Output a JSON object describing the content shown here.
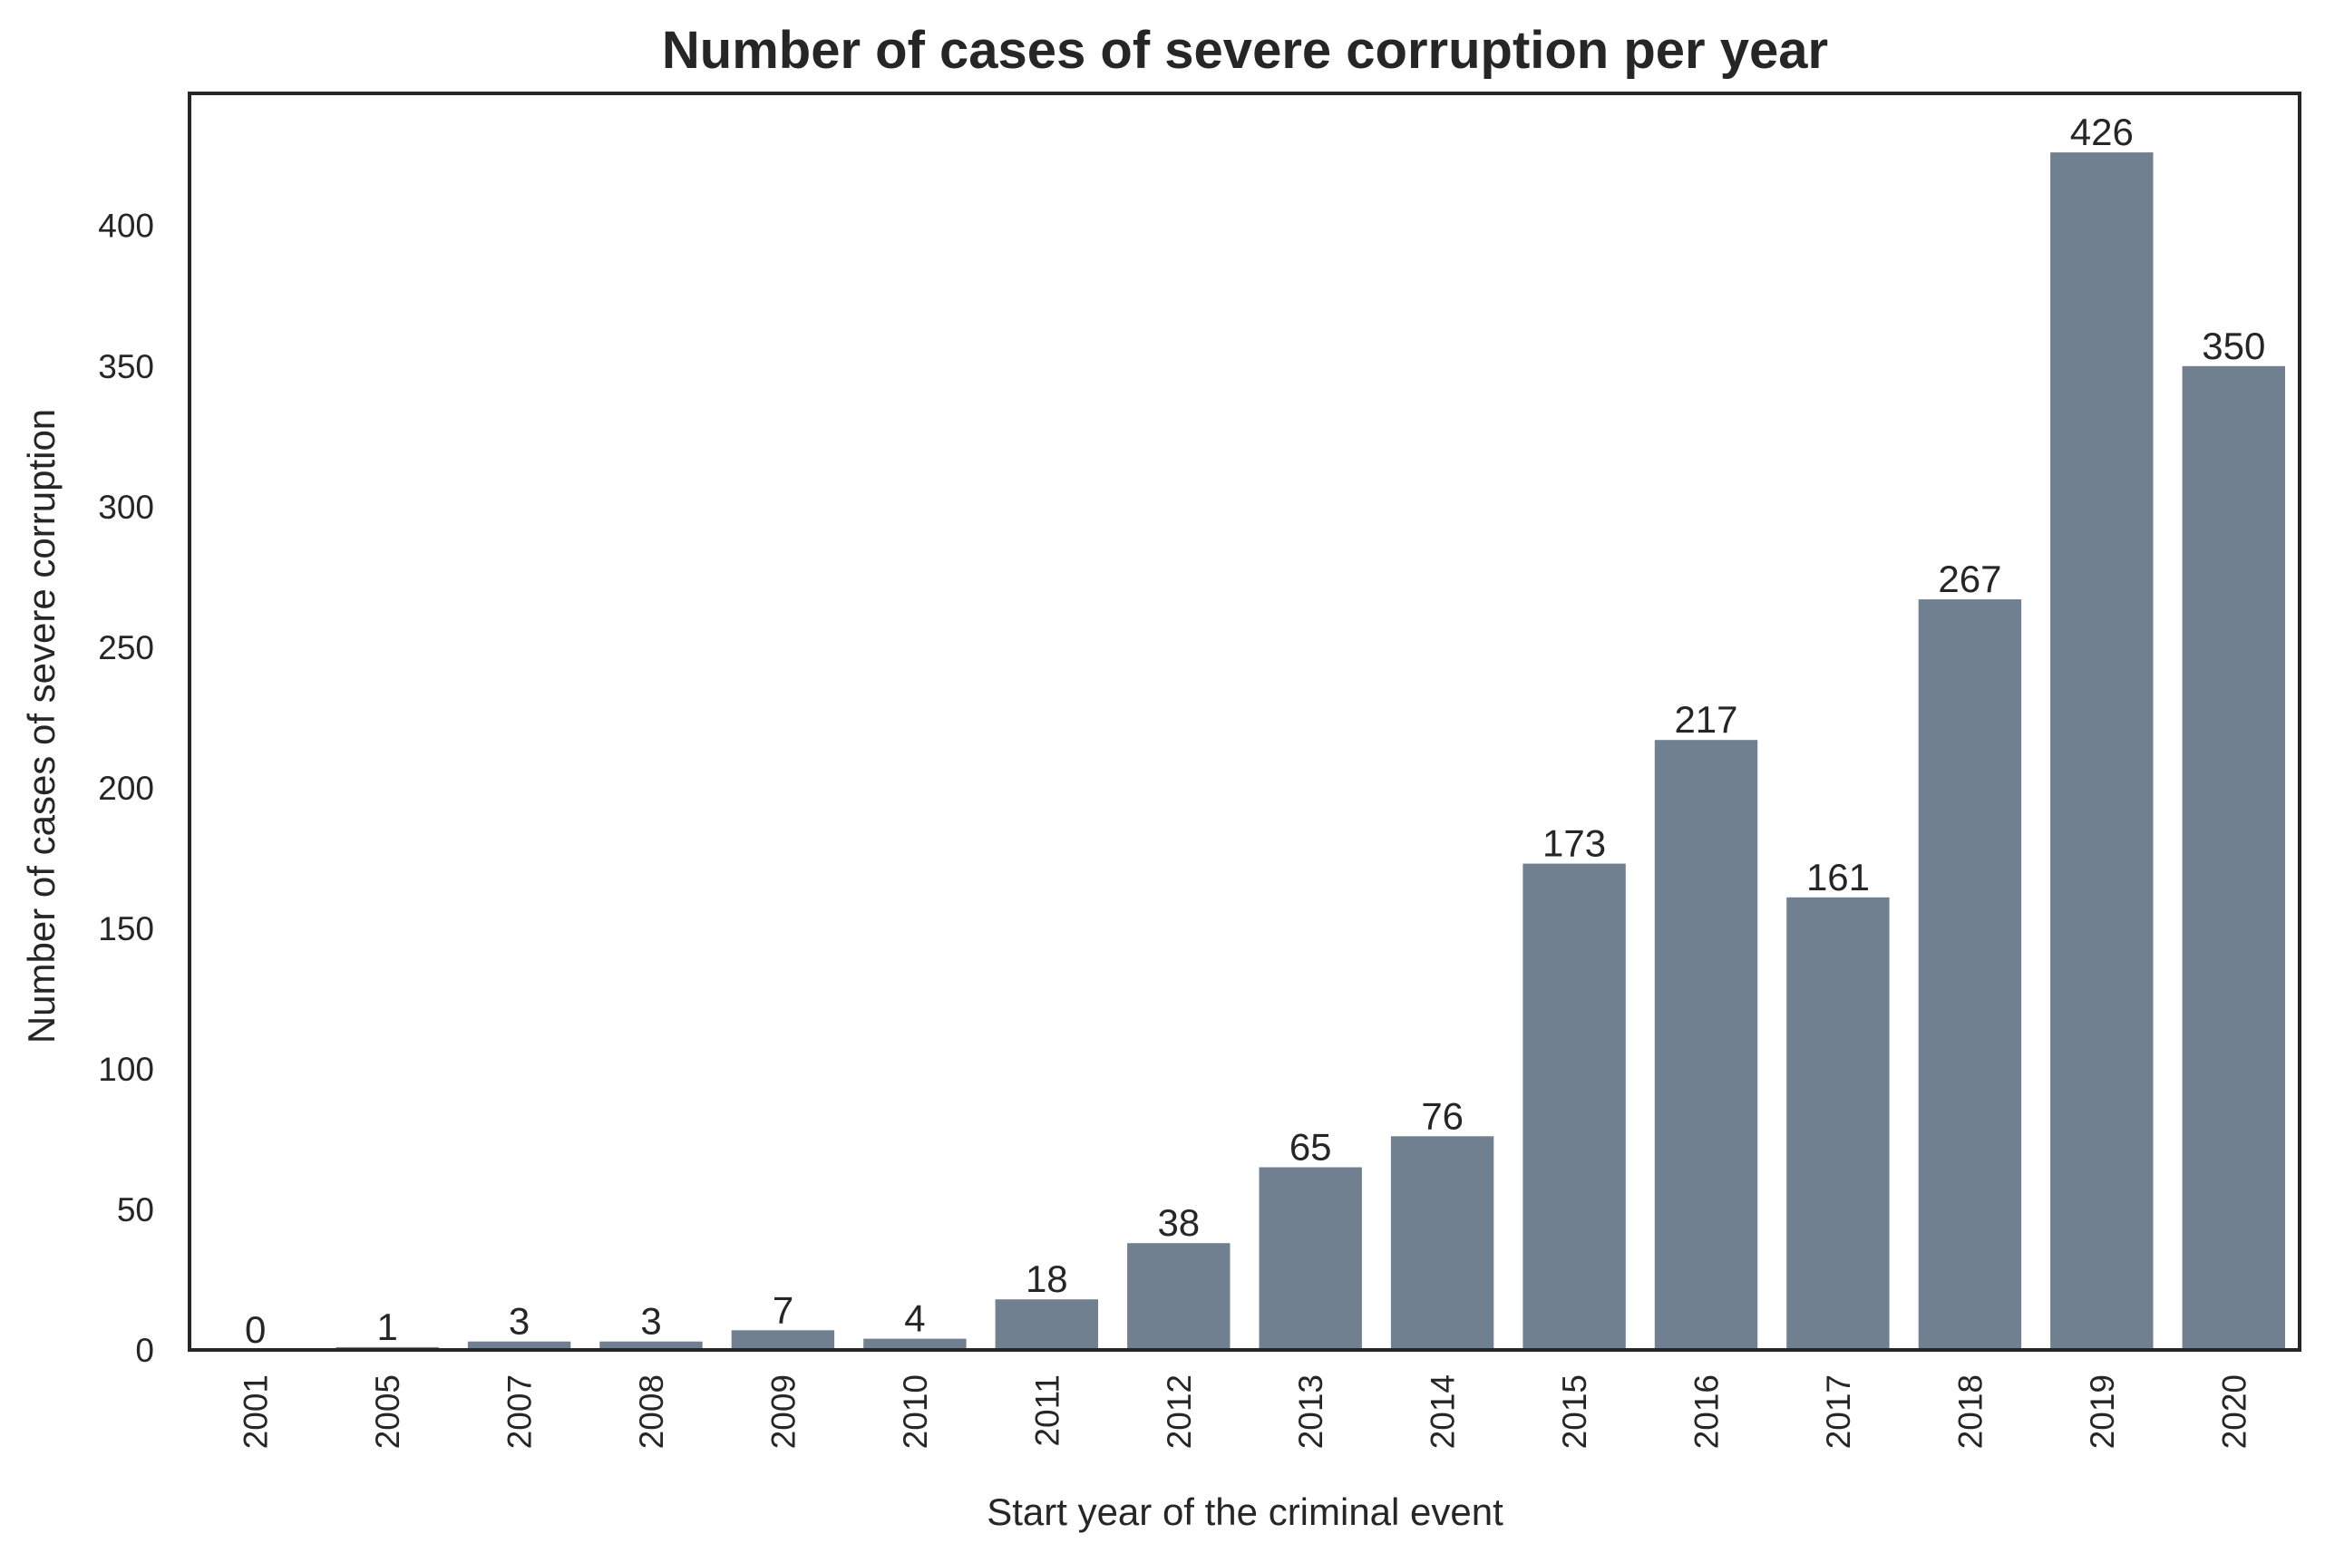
{
  "chart_data": {
    "type": "bar",
    "title": "Number of cases of severe corruption per year",
    "xlabel": "Start year of the criminal event",
    "ylabel": "Number of cases of severe corruption",
    "categories": [
      "2001",
      "2005",
      "2007",
      "2008",
      "2009",
      "2010",
      "2011",
      "2012",
      "2013",
      "2014",
      "2015",
      "2016",
      "2017",
      "2018",
      "2019",
      "2020"
    ],
    "values": [
      0,
      1,
      3,
      3,
      7,
      4,
      18,
      38,
      65,
      76,
      173,
      217,
      161,
      267,
      426,
      350
    ],
    "data_labels": [
      "0",
      "1",
      "3",
      "3",
      "7",
      "4",
      "18",
      "38",
      "65",
      "76",
      "173",
      "217",
      "161",
      "267",
      "426",
      "350"
    ],
    "yticks": [
      "0",
      "50",
      "100",
      "150",
      "200",
      "250",
      "300",
      "350",
      "400"
    ],
    "ylim": [
      0,
      447
    ],
    "grid": false,
    "bar_color": "#708090",
    "text_color": "#262626",
    "axis_color": "#262626"
  }
}
